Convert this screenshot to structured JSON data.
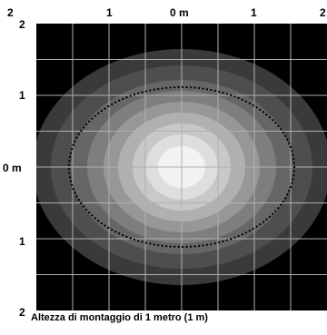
{
  "figure": {
    "caption": "Altezza di montaggio di 1 metro (1 m)",
    "top_axis_labels": [
      "2",
      "1",
      "0 m",
      "1",
      "2"
    ],
    "left_axis_labels": [
      "2",
      "1",
      "0 m",
      "1",
      "2"
    ],
    "background_color": "#000000",
    "grid_color": "#b0b0b0",
    "dotted_line_color": "#000000",
    "illuminance_levels": 9
  }
}
